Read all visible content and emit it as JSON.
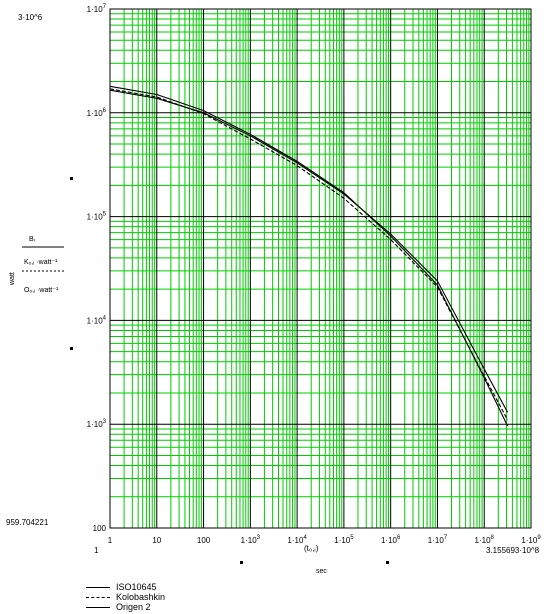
{
  "chart_data": {
    "type": "line",
    "x_scale": "log",
    "y_scale": "log",
    "xlim": [
      1,
      1000000000
    ],
    "ylim": [
      100,
      10000000
    ],
    "grid": true,
    "grid_color": "#00cc00",
    "major_grid_color": "#000000",
    "line_color": "#000000",
    "legend_position": "bottom-left",
    "y_top_label": "3·10^6",
    "y_bottom_label": "959.704221",
    "x_left_label": "1",
    "x_right_label": "3.155693·10^8",
    "x_axis_tick_labels": [
      "1",
      "10",
      "100",
      "1·10^3",
      "1·10^4",
      "1·10^5",
      "1·10^6",
      "1·10^7",
      "1·10^8",
      "1·10^9"
    ],
    "y_axis_tick_labels": [
      "100",
      "1·10^3",
      "1·10^4",
      "1·10^5",
      "1·10^6",
      "1·10^7"
    ],
    "xlabel_main": "(t₀,ᵢ)",
    "xlabel_unit": "sec",
    "ylabel_lines": [
      "watt",
      "Bᵢ",
      "Kₒ,ᵢ ·watt⁻¹",
      "Oₒ,ᵢ ·watt⁻¹"
    ],
    "series": [
      {
        "name": "ISO10645",
        "style": "solid",
        "x": [
          1,
          10,
          100,
          1000,
          10000,
          100000,
          1000000,
          10000000,
          100000000,
          315569300
        ],
        "y": [
          1800000,
          1500000,
          1050000,
          620000,
          340000,
          170000,
          65000,
          22000,
          2800,
          960
        ]
      },
      {
        "name": "Kolobashkin",
        "style": "dashed",
        "x": [
          1,
          10,
          100,
          1000,
          10000,
          100000,
          1000000,
          10000000,
          100000000,
          315569300
        ],
        "y": [
          1700000,
          1420000,
          980000,
          560000,
          310000,
          150000,
          60000,
          21000,
          2900,
          1100
        ]
      },
      {
        "name": "Origen 2",
        "style": "solid",
        "x": [
          1,
          10,
          100,
          1000,
          10000,
          100000,
          1000000,
          10000000,
          100000000,
          315569300
        ],
        "y": [
          1650000,
          1380000,
          1000000,
          600000,
          330000,
          165000,
          68000,
          24000,
          3400,
          1300
        ]
      }
    ]
  }
}
